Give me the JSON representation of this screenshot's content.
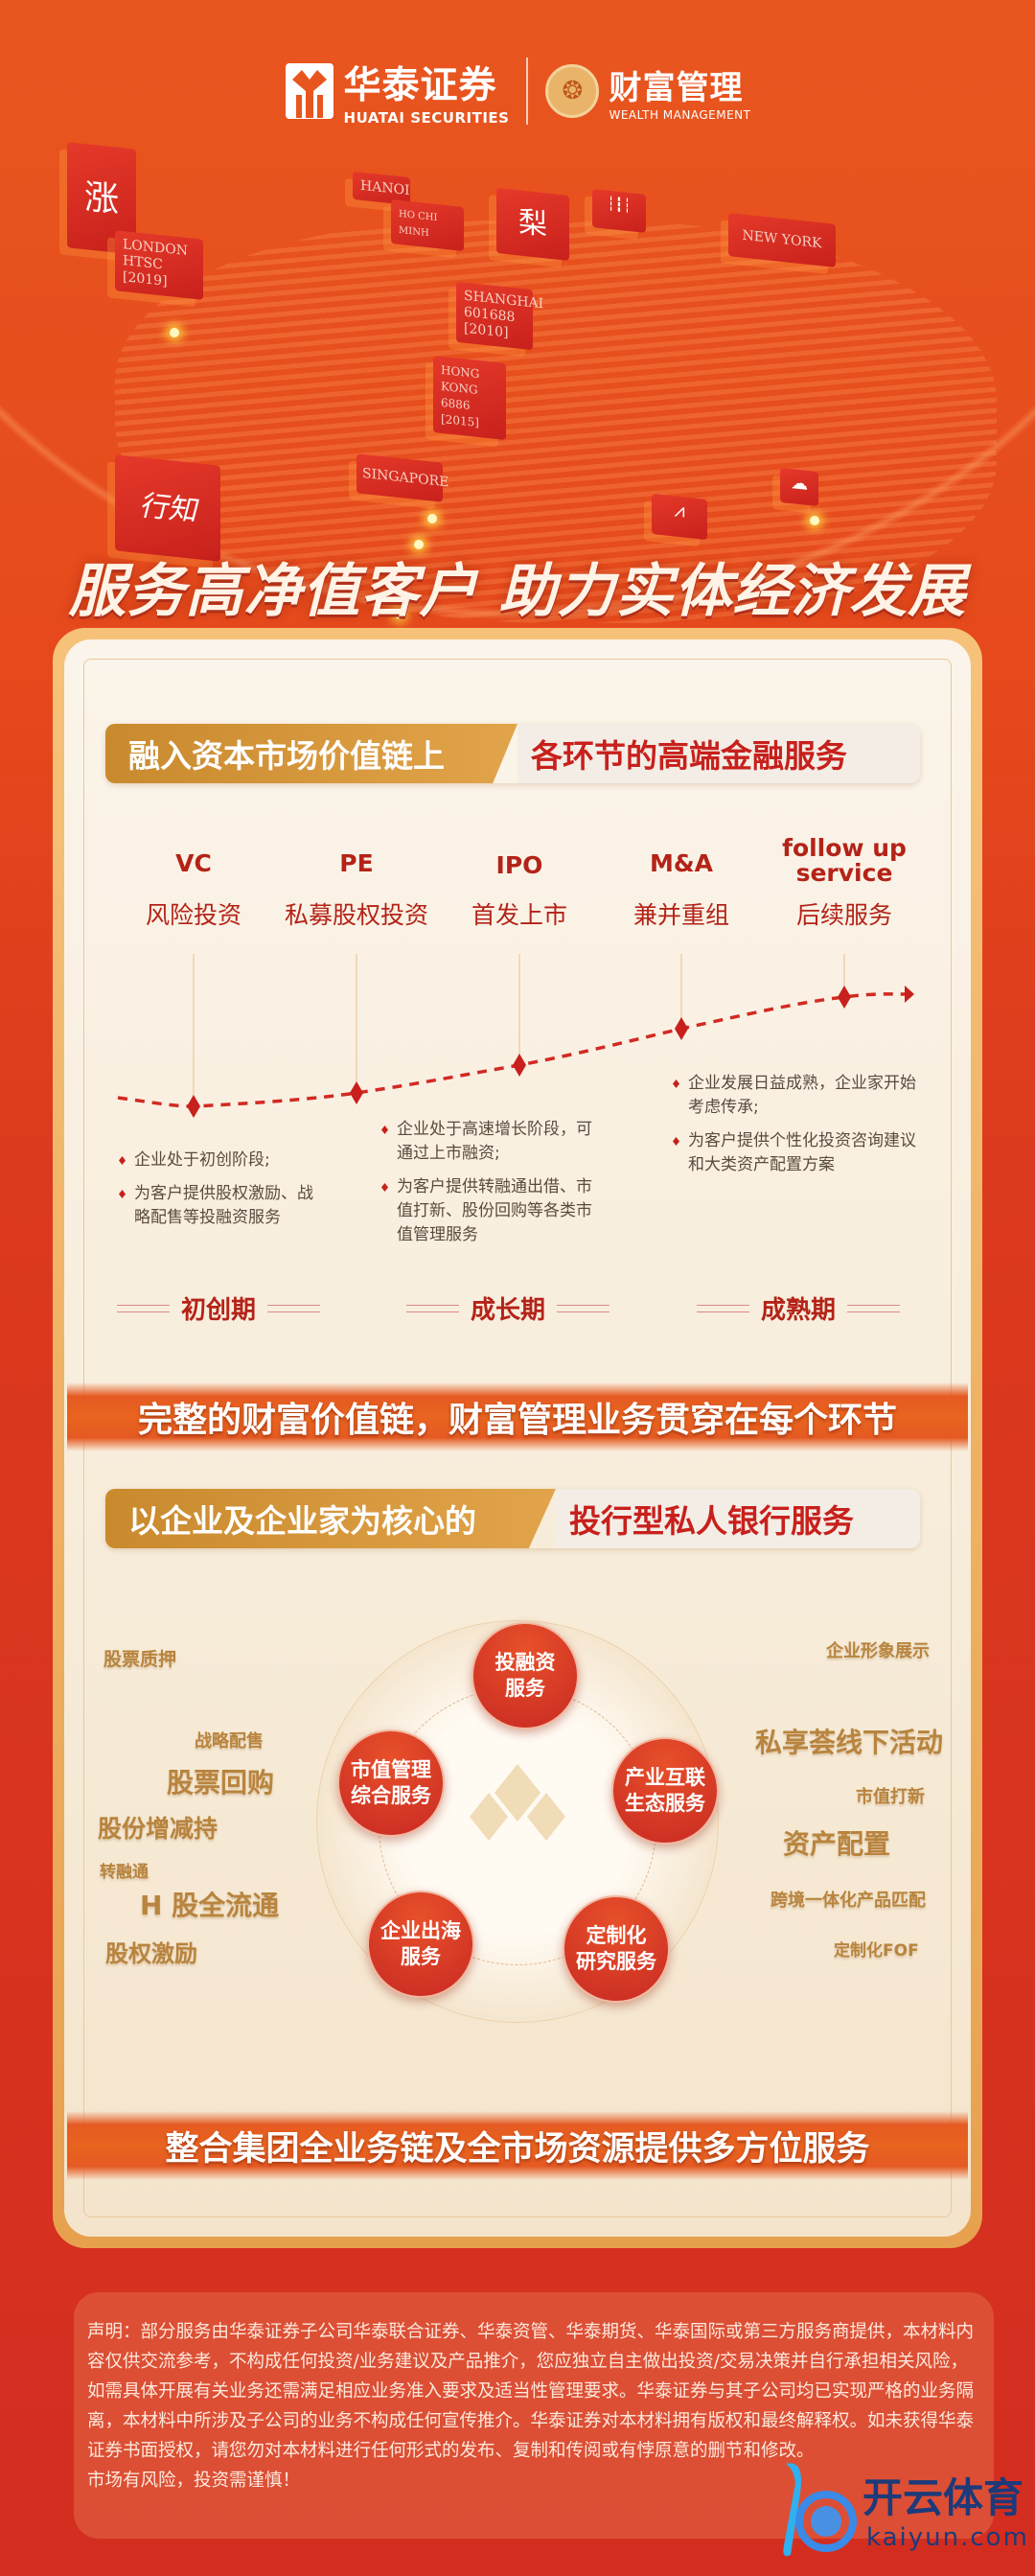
{
  "header": {
    "brand_cn": "华泰证券",
    "brand_en": "HUATAI SECURITIES",
    "wealth_cn": "财富管理",
    "wealth_en": "WEALTH MANAGEMENT"
  },
  "map": {
    "tags": [
      "LONDON",
      "HTSC",
      "[2019]",
      "HANOI",
      "HO CHI MINH",
      "SHANGHAI",
      "601688",
      "[2010]",
      "HONG KONG",
      "6886",
      "[2015]",
      "NEW YORK",
      "SINGAPORE"
    ],
    "badges": {
      "zhang": "涨",
      "li": "梨",
      "xingzhi": "行知"
    }
  },
  "headline": "服务高净值客户 助力实体经济发展",
  "section1": {
    "title_left": "融入资本市场价值链上",
    "title_right": "各环节的高端金融服务",
    "stages": [
      {
        "en": "VC",
        "cn": "风险投资"
      },
      {
        "en": "PE",
        "cn": "私募股权投资"
      },
      {
        "en": "IPO",
        "cn": "首发上市"
      },
      {
        "en": "M&A",
        "cn": "兼并重组"
      },
      {
        "en": "follow up service",
        "cn": "后续服务"
      }
    ],
    "bullets_startup": [
      "企业处于初创阶段;",
      "为客户提供股权激励、战略配售等投融资服务"
    ],
    "bullets_growth": [
      "企业处于高速增长阶段，可通过上市融资;",
      "为客户提供转融通出借、市值打新、股份回购等各类市值管理服务"
    ],
    "bullets_mature": [
      "企业发展日益成熟，企业家开始考虑传承;",
      "为客户提供个性化投资咨询建议和大类资产配置方案"
    ],
    "phases": [
      "初创期",
      "成长期",
      "成熟期"
    ]
  },
  "banner1": "完整的财富价值链，财富管理业务贯穿在每个环节",
  "section2": {
    "title_left": "以企业及企业家为核心的",
    "title_right": "投行型私人银行服务",
    "circles": [
      "投融资\n服务",
      "市值管理\n综合服务",
      "产业互联\n生态服务",
      "企业出海\n服务",
      "定制化\n研究服务"
    ],
    "left_keywords": [
      "股票质押",
      "战略配售",
      "股票回购",
      "股份增减持",
      "转融通",
      "H 股全流通",
      "股权激励"
    ],
    "right_keywords": [
      "企业形象展示",
      "私享荟线下活动",
      "市值打新",
      "资产配置",
      "跨境一体化产品匹配",
      "定制化FOF"
    ]
  },
  "banner2": "整合集团全业务链及全市场资源提供多方位服务",
  "disclaimer": {
    "text": "声明：部分服务由华泰证券子公司华泰联合证券、华泰资管、华泰期货、华泰国际或第三方服务商提供，本材料内容仅供交流参考，不构成任何投资/业务建议及产品推介，您应独立自主做出投资/交易决策并自行承担相关风险，如需具体开展有关业务还需满足相应业务准入要求及适当性管理要求。华泰证券与其子公司均已实现严格的业务隔离，本材料中所涉及子公司的业务不构成任何宣传推介。华泰证券对本材料拥有版权和最终解释权。如未获得华泰证券书面授权，请您勿对本材料进行任何形式的发布、复制和传阅或有悖原意的删节和修改。",
    "risk": "市场有风险，投资需谨慎！"
  },
  "watermark": {
    "cn": "开云体育",
    "en": "kaiyun.com"
  },
  "colors": {
    "brand_red": "#c8201c",
    "orange": "#e8561f",
    "gold": "#e2a44a",
    "keyword_gold": "#b8843e"
  }
}
